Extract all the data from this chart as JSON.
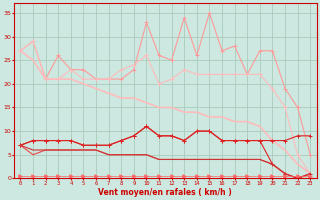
{
  "xlabel": "Vent moyen/en rafales ( km/h )",
  "background_color": "#cce8e0",
  "grid_color": "#aaccbb",
  "xlim": [
    -0.5,
    23.5
  ],
  "ylim": [
    0,
    37
  ],
  "yticks": [
    0,
    5,
    10,
    15,
    20,
    25,
    30,
    35
  ],
  "xticks": [
    0,
    1,
    2,
    3,
    4,
    5,
    6,
    7,
    8,
    9,
    10,
    11,
    12,
    13,
    14,
    15,
    16,
    17,
    18,
    19,
    20,
    21,
    22,
    23
  ],
  "series": [
    {
      "x": [
        0,
        1,
        2,
        3,
        4,
        5,
        6,
        7,
        8,
        9,
        10,
        11,
        12,
        13,
        14,
        15,
        16,
        17,
        18,
        19,
        20,
        21,
        22,
        23
      ],
      "y": [
        27,
        29,
        21,
        26,
        23,
        23,
        21,
        21,
        21,
        23,
        33,
        26,
        25,
        34,
        26,
        35,
        27,
        28,
        22,
        27,
        27,
        19,
        15,
        5
      ],
      "color": "#ff9999",
      "marker": "+",
      "linewidth": 0.8,
      "markersize": 3
    },
    {
      "x": [
        0,
        1,
        2,
        3,
        4,
        5,
        6,
        7,
        8,
        9,
        10,
        11,
        12,
        13,
        14,
        15,
        16,
        17,
        18,
        19,
        20,
        21,
        22,
        23
      ],
      "y": [
        27,
        29,
        21,
        21,
        23,
        21,
        21,
        21,
        23,
        24,
        26,
        20,
        21,
        23,
        22,
        22,
        22,
        22,
        22,
        22,
        19,
        15,
        5,
        1
      ],
      "color": "#ffbbbb",
      "marker": "+",
      "linewidth": 0.8,
      "markersize": 3
    },
    {
      "x": [
        0,
        1,
        2,
        3,
        4,
        5,
        6,
        7,
        8,
        9,
        10,
        11,
        12,
        13,
        14,
        15,
        16,
        17,
        18,
        19,
        20,
        21,
        22,
        23
      ],
      "y": [
        27,
        25,
        21,
        21,
        21,
        20,
        19,
        18,
        17,
        17,
        16,
        15,
        15,
        14,
        14,
        13,
        13,
        12,
        12,
        11,
        8,
        6,
        3,
        1
      ],
      "color": "#ffbbbb",
      "marker": null,
      "linewidth": 1.2,
      "markersize": 0
    },
    {
      "x": [
        0,
        1,
        2,
        3,
        4,
        5,
        6,
        7,
        8,
        9,
        10,
        11,
        12,
        13,
        14,
        15,
        16,
        17,
        18,
        19,
        20,
        21,
        22,
        23
      ],
      "y": [
        7,
        8,
        8,
        8,
        8,
        7,
        7,
        7,
        8,
        9,
        11,
        9,
        9,
        8,
        10,
        10,
        8,
        8,
        8,
        8,
        8,
        8,
        9,
        9
      ],
      "color": "#dd2222",
      "marker": "+",
      "linewidth": 0.8,
      "markersize": 3
    },
    {
      "x": [
        0,
        1,
        2,
        3,
        4,
        5,
        6,
        7,
        8,
        9,
        10,
        11,
        12,
        13,
        14,
        15,
        16,
        17,
        18,
        19,
        20,
        21,
        22,
        23
      ],
      "y": [
        7,
        8,
        8,
        8,
        8,
        7,
        7,
        7,
        8,
        9,
        11,
        9,
        9,
        8,
        10,
        10,
        8,
        8,
        8,
        8,
        3,
        1,
        0,
        1
      ],
      "color": "#dd2222",
      "marker": "+",
      "linewidth": 0.8,
      "markersize": 3
    },
    {
      "x": [
        0,
        1,
        2,
        3,
        4,
        5,
        6,
        7,
        8,
        9,
        10,
        11,
        12,
        13,
        14,
        15,
        16,
        17,
        18,
        19,
        20,
        21,
        22,
        23
      ],
      "y": [
        7,
        5,
        6,
        6,
        6,
        6,
        6,
        5,
        5,
        5,
        5,
        4,
        4,
        4,
        4,
        4,
        4,
        4,
        4,
        4,
        3,
        1,
        0,
        1
      ],
      "color": "#ee4444",
      "marker": null,
      "linewidth": 0.8,
      "markersize": 0
    },
    {
      "x": [
        0,
        1,
        2,
        3,
        4,
        5,
        6,
        7,
        8,
        9,
        10,
        11,
        12,
        13,
        14,
        15,
        16,
        17,
        18,
        19,
        20,
        21,
        22,
        23
      ],
      "y": [
        7,
        6,
        6,
        6,
        6,
        6,
        6,
        5,
        5,
        5,
        5,
        4,
        4,
        4,
        4,
        4,
        4,
        4,
        4,
        4,
        3,
        1,
        0,
        1
      ],
      "color": "#cc3333",
      "marker": null,
      "linewidth": 0.8,
      "markersize": 0
    },
    {
      "x": [
        0,
        1,
        2,
        3,
        4,
        5,
        6,
        7,
        8,
        9,
        10,
        11,
        12,
        13,
        14,
        15,
        16,
        17,
        18,
        19,
        20,
        21,
        22,
        23
      ],
      "y": [
        0.5,
        0.5,
        0.5,
        0.5,
        0.5,
        0.5,
        0.5,
        0.5,
        0.5,
        0.5,
        0.5,
        0.5,
        0.5,
        0.5,
        0.5,
        0.5,
        0.5,
        0.5,
        0.5,
        0.5,
        0.5,
        0.5,
        0.5,
        0.5
      ],
      "color": "#ff6666",
      "marker": ">",
      "linewidth": 0.5,
      "markersize": 2.5
    }
  ]
}
